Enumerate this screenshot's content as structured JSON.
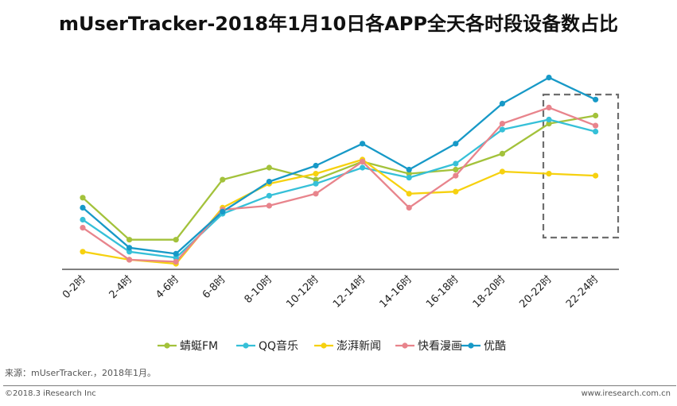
{
  "title": "mUserTracker-2018年1月10日各APP全天各时段设备数占比",
  "source": "来源：mUserTracker.，2018年1月。",
  "copyright": "©2018.3 iResearch Inc",
  "website": "www.iresearch.com.cn",
  "chart_data": {
    "type": "line",
    "title": "mUserTracker-2018年1月10日各APP全天各时段设备数占比",
    "xlabel": "",
    "ylabel": "",
    "ylim": [
      0,
      100
    ],
    "grid": false,
    "legend_position": "bottom",
    "highlight_box": "20-22时 to 22-24时",
    "categories": [
      "0-2时",
      "2-4时",
      "4-6时",
      "6-8时",
      "8-10时",
      "10-12时",
      "12-14时",
      "14-16时",
      "16-18时",
      "18-20时",
      "20-22时",
      "22-24时"
    ],
    "series": [
      {
        "name": "蜻蜓FM",
        "color": "#a3c23b",
        "values": [
          35,
          14,
          14,
          44,
          50,
          44,
          53,
          47,
          49,
          57,
          72,
          76
        ]
      },
      {
        "name": "QQ音乐",
        "color": "#36c0d8",
        "values": [
          24,
          8,
          5,
          27,
          36,
          42,
          50,
          45,
          52,
          69,
          74,
          68
        ]
      },
      {
        "name": "澎湃新闻",
        "color": "#f6d10f",
        "values": [
          8,
          4,
          2,
          30,
          42,
          47,
          54,
          37,
          38,
          48,
          47,
          46
        ]
      },
      {
        "name": "快看漫画",
        "color": "#e8848c",
        "values": [
          20,
          4,
          3,
          29,
          31,
          37,
          53,
          30,
          46,
          72,
          80,
          71
        ]
      },
      {
        "name": "优酷",
        "color": "#1799c7",
        "values": [
          30,
          10,
          7,
          28,
          43,
          51,
          62,
          49,
          62,
          82,
          95,
          84
        ]
      }
    ]
  }
}
